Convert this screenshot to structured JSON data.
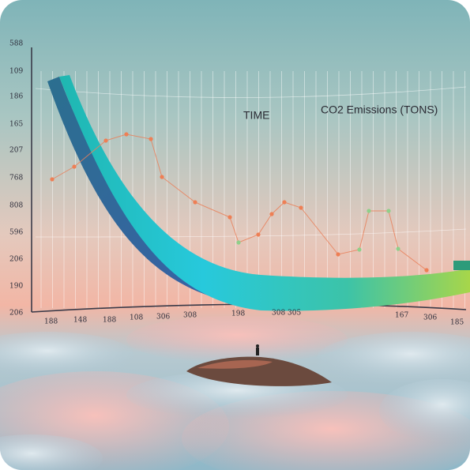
{
  "chart_labels": {
    "y_axis_labels": [
      "588",
      "109",
      "186",
      "165",
      "207",
      "768",
      "808",
      "596",
      "206",
      "190",
      "206"
    ],
    "x_axis_labels": [
      "188",
      "148",
      "188",
      "108",
      "306",
      "308",
      "198",
      "308 305",
      "167",
      "306",
      "185"
    ],
    "x_title": "TIME",
    "series_title": "CO2 Emissions (TONS)"
  }
}
